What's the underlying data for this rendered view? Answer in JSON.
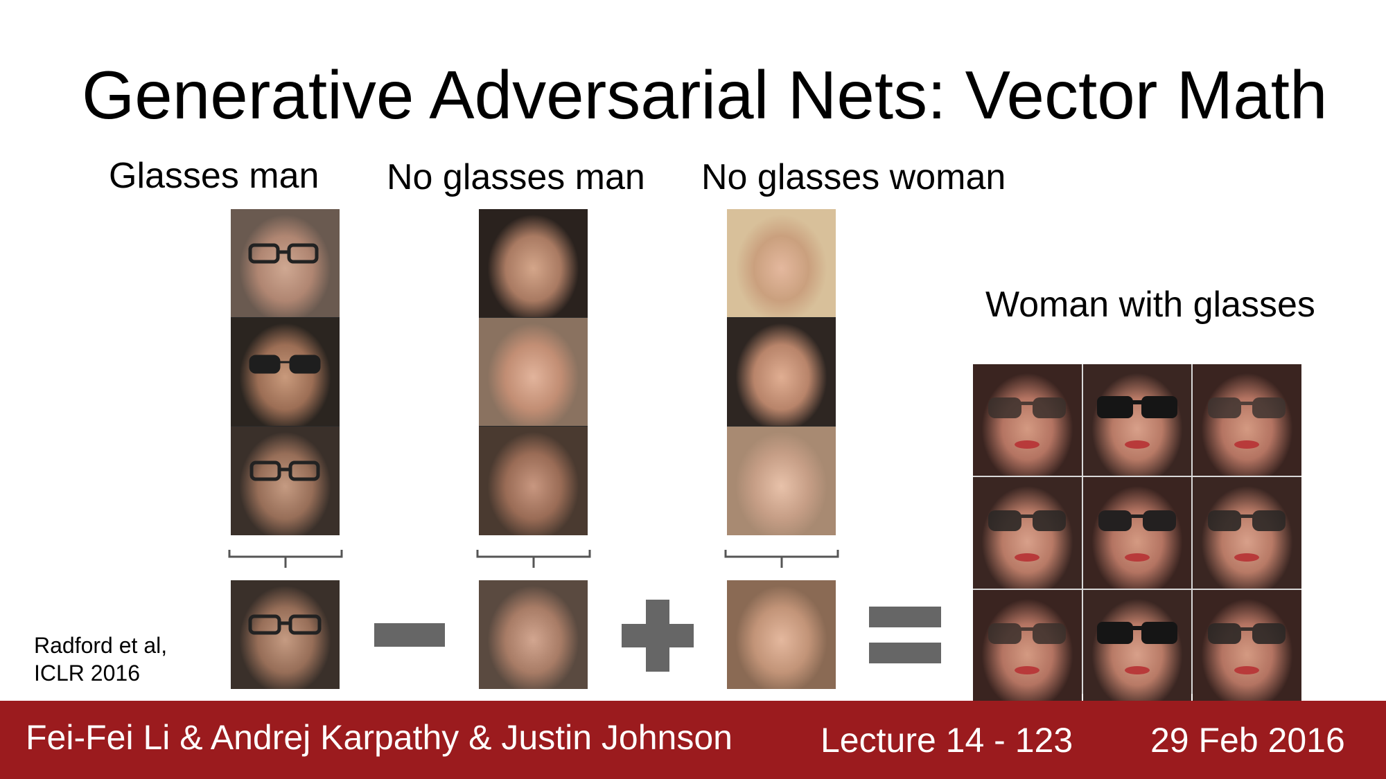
{
  "slide": {
    "title": "Generative Adversarial Nets: Vector Math",
    "columns": [
      {
        "label": "Glasses man"
      },
      {
        "label": "No glasses man"
      },
      {
        "label": "No glasses woman"
      }
    ],
    "result_label": "Woman with glasses",
    "citation_line1": "Radford et al,",
    "citation_line2": "ICLR 2016"
  },
  "footer": {
    "authors": "Fei-Fei Li & Andrej Karpathy & Justin Johnson",
    "lecture": "Lecture 14 - 123",
    "date": "29 Feb 2016"
  },
  "colors": {
    "footer_bg": "#9b1b1e",
    "operator": "#666666"
  }
}
